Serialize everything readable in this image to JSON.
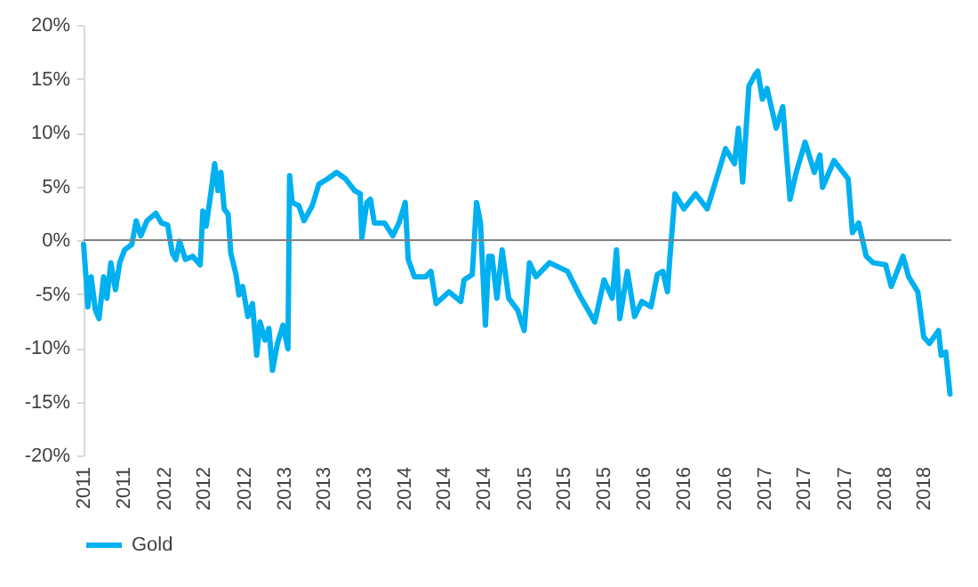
{
  "chart_data": {
    "type": "line",
    "x": [
      "2011-05-01",
      "2011-05-09",
      "2011-05-14",
      "2011-05-24",
      "2011-06-06",
      "2011-06-17",
      "2011-07-01",
      "2011-07-11",
      "2011-07-23",
      "2011-08-06",
      "2011-08-19",
      "2011-09-03",
      "2011-09-25",
      "2011-10-08",
      "2011-10-22",
      "2011-11-10",
      "2011-12-07",
      "2011-12-24",
      "2012-01-12",
      "2012-01-26",
      "2012-02-06",
      "2012-02-17",
      "2012-03-06",
      "2012-03-28",
      "2012-04-20",
      "2012-04-28",
      "2012-05-08",
      "2012-05-22",
      "2012-06-03",
      "2012-06-13",
      "2012-06-22",
      "2012-07-02",
      "2012-07-14",
      "2012-07-22",
      "2012-08-07",
      "2012-08-16",
      "2012-08-27",
      "2012-09-12",
      "2012-09-26",
      "2012-10-09",
      "2012-10-19",
      "2012-11-03",
      "2012-11-15",
      "2012-11-26",
      "2012-12-11",
      "2012-12-28",
      "2013-01-12",
      "2013-01-17",
      "2013-01-25",
      "2013-02-14",
      "2013-03-02",
      "2013-03-27",
      "2013-04-16",
      "2013-05-13",
      "2013-06-09",
      "2013-07-06",
      "2013-08-03",
      "2013-08-20",
      "2013-08-25",
      "2013-09-09",
      "2013-09-20",
      "2013-10-02",
      "2013-11-02",
      "2013-11-27",
      "2013-12-16",
      "2014-01-04",
      "2014-01-13",
      "2014-02-01",
      "2014-03-07",
      "2014-03-23",
      "2014-04-08",
      "2014-05-17",
      "2014-06-22",
      "2014-07-02",
      "2014-07-27",
      "2014-08-09",
      "2014-08-21",
      "2014-09-05",
      "2014-09-15",
      "2014-09-25",
      "2014-10-10",
      "2014-10-26",
      "2014-11-15",
      "2014-12-12",
      "2015-01-01",
      "2015-01-17",
      "2015-02-06",
      "2015-03-19",
      "2015-05-13",
      "2015-06-18",
      "2015-08-04",
      "2015-09-01",
      "2015-09-26",
      "2015-10-09",
      "2015-10-19",
      "2015-11-11",
      "2015-12-03",
      "2015-12-25",
      "2016-01-22",
      "2016-02-10",
      "2016-02-27",
      "2016-03-12",
      "2016-03-19",
      "2016-04-04",
      "2016-05-01",
      "2016-06-06",
      "2016-07-11",
      "2016-08-08",
      "2016-09-05",
      "2016-10-02",
      "2016-10-14",
      "2016-10-27",
      "2016-11-15",
      "2016-12-04",
      "2016-12-12",
      "2016-12-26",
      "2017-01-09",
      "2017-02-06",
      "2017-02-26",
      "2017-03-20",
      "2017-04-08",
      "2017-05-05",
      "2017-06-02",
      "2017-06-19",
      "2017-06-27",
      "2017-08-01",
      "2017-08-21",
      "2017-09-13",
      "2017-09-26",
      "2017-10-15",
      "2017-11-07",
      "2017-11-28",
      "2018-01-05",
      "2018-01-22",
      "2018-02-27",
      "2018-03-16",
      "2018-04-13",
      "2018-05-01",
      "2018-05-18",
      "2018-06-15",
      "2018-06-23",
      "2018-07-07",
      "2018-07-20"
    ],
    "series": [
      {
        "name": "Gold",
        "color": "#00b0f0",
        "values": [
          -0.4,
          -3.7,
          -6.2,
          -3.4,
          -6.5,
          -7.3,
          -3.4,
          -5.4,
          -2.1,
          -4.6,
          -2.1,
          -0.9,
          -0.4,
          1.8,
          0.4,
          1.8,
          2.5,
          1.6,
          1.4,
          -1.2,
          -1.8,
          -0.1,
          -1.8,
          -1.5,
          -2.3,
          2.7,
          1.3,
          4.3,
          7.1,
          4.6,
          6.3,
          2.9,
          2.4,
          -1.2,
          -3.2,
          -5.1,
          -4.3,
          -7.1,
          -5.9,
          -10.7,
          -7.6,
          -9.3,
          -8.2,
          -12.1,
          -9.6,
          -7.9,
          -10.1,
          6.0,
          3.5,
          3.2,
          1.8,
          3.2,
          5.2,
          5.7,
          6.3,
          5.7,
          4.6,
          4.3,
          0.2,
          3.5,
          3.8,
          1.6,
          1.6,
          0.4,
          1.6,
          3.5,
          -1.8,
          -3.4,
          -3.4,
          -2.9,
          -5.9,
          -4.8,
          -5.7,
          -3.7,
          -3.2,
          3.5,
          1.6,
          -7.9,
          -1.5,
          -1.5,
          -5.4,
          -0.9,
          -5.4,
          -6.5,
          -8.4,
          -2.1,
          -3.4,
          -2.1,
          -2.9,
          -5.1,
          -7.6,
          -3.7,
          -5.4,
          -0.9,
          -7.3,
          -2.9,
          -7.1,
          -5.7,
          -6.2,
          -3.2,
          -2.9,
          -4.8,
          -1.8,
          4.3,
          2.9,
          4.3,
          2.9,
          5.7,
          8.5,
          7.1,
          10.4,
          5.4,
          14.3,
          15.4,
          15.7,
          13.1,
          14.1,
          10.4,
          12.4,
          3.8,
          6.3,
          9.1,
          6.3,
          7.9,
          4.9,
          7.4,
          6.6,
          5.7,
          0.7,
          1.6,
          -1.5,
          -2.1,
          -2.3,
          -4.3,
          -1.5,
          -3.4,
          -4.8,
          -9.0,
          -9.6,
          -8.4,
          -10.7,
          -10.4,
          -14.3
        ]
      }
    ],
    "xlim": [
      "2011-05-01",
      "2018-07-24"
    ],
    "xticks": [
      {
        "value": "2011-05-01",
        "label": "2011"
      },
      {
        "value": "2011-09-01",
        "label": "2011"
      },
      {
        "value": "2012-01-01",
        "label": "2012"
      },
      {
        "value": "2012-05-01",
        "label": "2012"
      },
      {
        "value": "2012-09-01",
        "label": "2012"
      },
      {
        "value": "2013-01-01",
        "label": "2013"
      },
      {
        "value": "2013-05-01",
        "label": "2013"
      },
      {
        "value": "2013-09-01",
        "label": "2013"
      },
      {
        "value": "2014-01-01",
        "label": "2014"
      },
      {
        "value": "2014-05-01",
        "label": "2014"
      },
      {
        "value": "2014-09-01",
        "label": "2014"
      },
      {
        "value": "2015-01-01",
        "label": "2015"
      },
      {
        "value": "2015-05-01",
        "label": "2015"
      },
      {
        "value": "2015-09-01",
        "label": "2015"
      },
      {
        "value": "2016-01-01",
        "label": "2016"
      },
      {
        "value": "2016-05-01",
        "label": "2016"
      },
      {
        "value": "2016-09-01",
        "label": "2016"
      },
      {
        "value": "2017-01-01",
        "label": "2017"
      },
      {
        "value": "2017-05-01",
        "label": "2017"
      },
      {
        "value": "2017-09-01",
        "label": "2017"
      },
      {
        "value": "2018-01-01",
        "label": "2018"
      },
      {
        "value": "2018-05-01",
        "label": "2018"
      }
    ],
    "ylim": [
      -20,
      20
    ],
    "yticks": [
      {
        "value": -20,
        "label": "-20%"
      },
      {
        "value": -15,
        "label": "-15%"
      },
      {
        "value": -10,
        "label": "-10%"
      },
      {
        "value": -5,
        "label": "-5%"
      },
      {
        "value": 0,
        "label": "0%"
      },
      {
        "value": 5,
        "label": "5%"
      },
      {
        "value": 10,
        "label": "10%"
      },
      {
        "value": 15,
        "label": "15%"
      },
      {
        "value": 20,
        "label": "20%"
      }
    ],
    "ref_lines": [
      {
        "axis": "y",
        "value": 0,
        "color": "#808080"
      }
    ],
    "grid": false,
    "legend": "bottom",
    "line_style": "solid"
  }
}
